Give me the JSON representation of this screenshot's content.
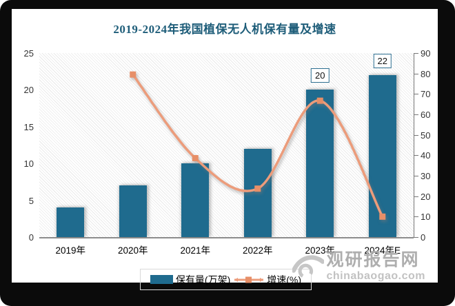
{
  "chart_data": {
    "type": "combo-bar-line",
    "title": "2019-2024年我国植保无人机保有量及增速",
    "title_color": "#1e5d79",
    "categories": [
      "2019年",
      "2020年",
      "2021年",
      "2022年",
      "2023年",
      "2024年E"
    ],
    "series": [
      {
        "name": "保有量(万架)",
        "type": "bar",
        "axis": "left",
        "color": "#1f6b8e",
        "values": [
          4,
          7,
          10,
          12,
          20,
          22
        ],
        "point_labels": [
          "",
          "",
          "",
          "",
          "20",
          "22"
        ]
      },
      {
        "name": "增速(%)",
        "type": "line",
        "axis": "right",
        "color": "#ec9c7b",
        "marker_color": "#e78f68",
        "marker_shape": "square",
        "values": [
          null,
          79.5,
          38.6,
          23.7,
          66.7,
          10
        ]
      }
    ],
    "left_axis": {
      "min": 0,
      "max": 25,
      "ticks": [
        0,
        5,
        10,
        15,
        20,
        25
      ]
    },
    "right_axis": {
      "min": 0,
      "max": 90,
      "ticks": [
        0,
        10,
        20,
        30,
        40,
        50,
        60,
        70,
        80,
        90
      ]
    },
    "legend_position": "bottom",
    "plot_background": "diagonal-hatch",
    "grid": false
  },
  "watermark": {
    "logo_icon": "eye-swoosh-icon",
    "name": "观研报告网",
    "url": "chinabaogao.com"
  }
}
